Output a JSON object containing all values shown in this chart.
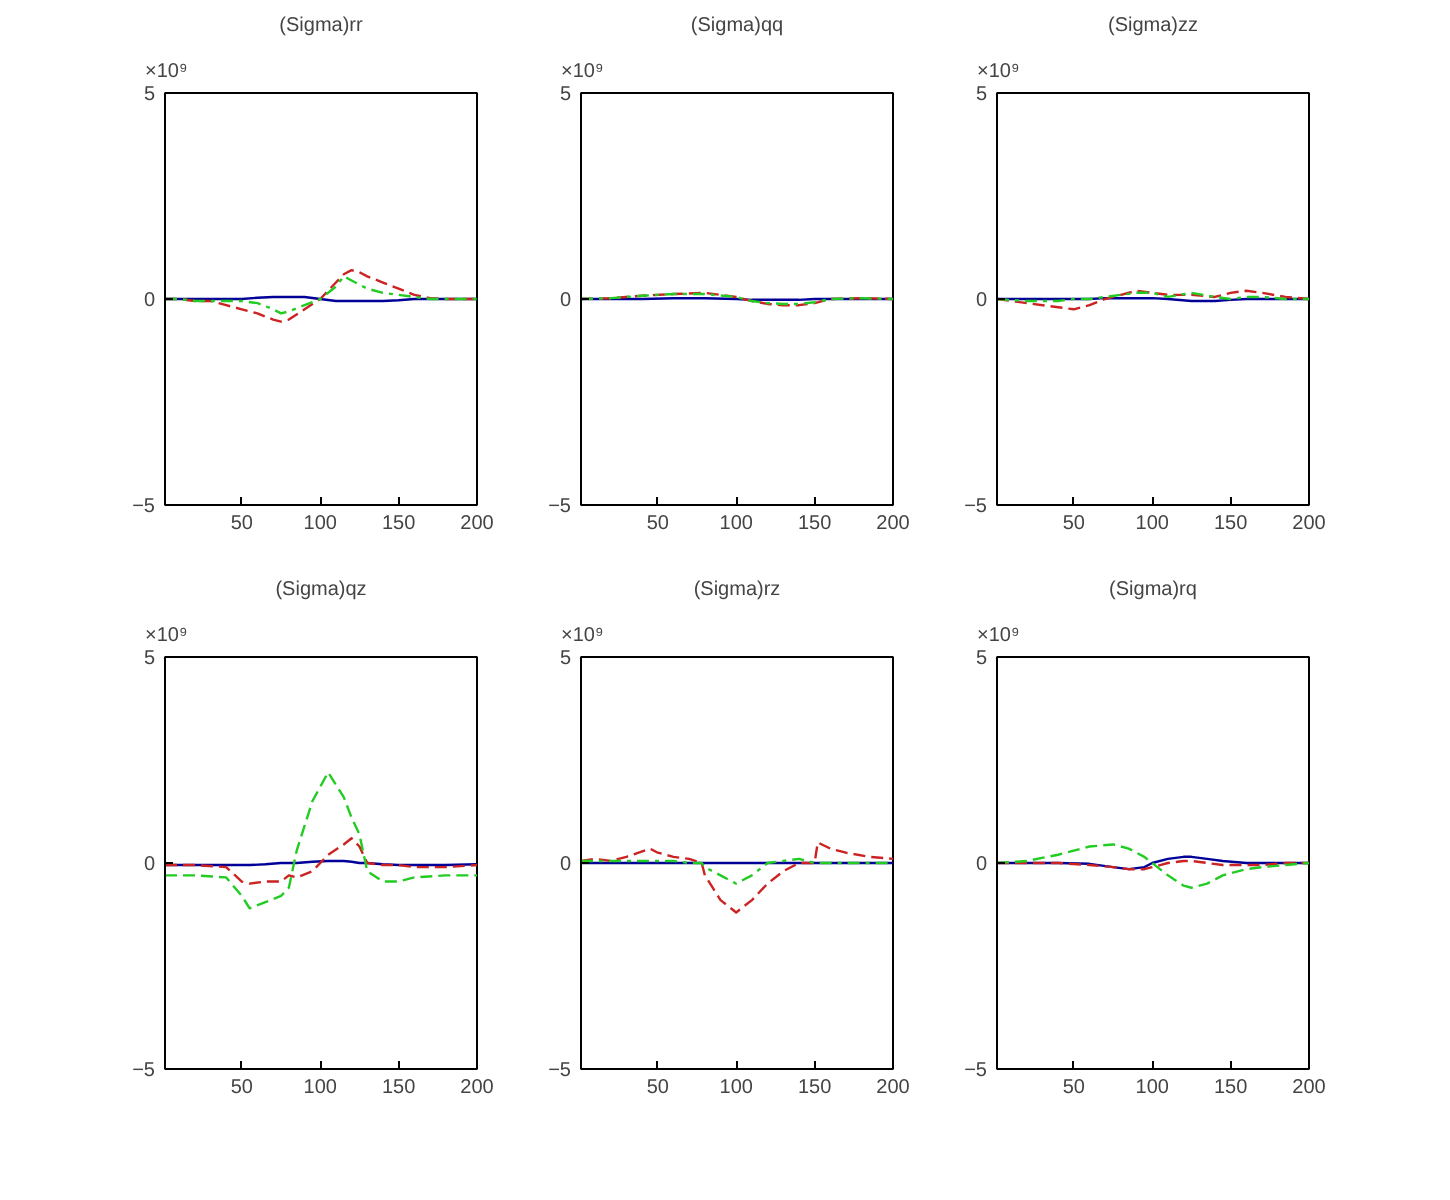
{
  "chart_data": [
    {
      "type": "line",
      "title": "(Sigma)rr",
      "ylabel": "×10⁹",
      "xlim": [
        1,
        200
      ],
      "ylim": [
        -5,
        5
      ],
      "xticks": [
        50,
        100,
        150,
        200
      ],
      "yticks": [
        -5,
        0,
        5
      ],
      "grid": false,
      "marker": "none",
      "x": [
        1,
        10,
        20,
        30,
        40,
        50,
        60,
        70,
        75,
        80,
        90,
        100,
        110,
        115,
        120,
        125,
        130,
        140,
        150,
        160,
        170,
        180,
        190,
        200
      ],
      "series": [
        {
          "color": "#000099",
          "line_style": "solid",
          "values": [
            0,
            0,
            0,
            0,
            0,
            0,
            0.03,
            0.05,
            0.05,
            0.05,
            0.05,
            0,
            -0.05,
            -0.05,
            -0.05,
            -0.05,
            -0.05,
            -0.05,
            -0.03,
            0,
            0,
            0,
            0,
            0
          ]
        },
        {
          "color": "#cc2222",
          "line_style": "dashed",
          "values": [
            0,
            0,
            -0.05,
            -0.05,
            -0.15,
            -0.25,
            -0.35,
            -0.5,
            -0.55,
            -0.5,
            -0.25,
            0,
            0.4,
            0.6,
            0.7,
            0.65,
            0.55,
            0.4,
            0.25,
            0.1,
            0.02,
            0,
            0,
            0
          ]
        },
        {
          "color": "#22cc22",
          "line_style": "dashdot",
          "values": [
            0,
            0,
            -0.05,
            -0.05,
            -0.05,
            -0.05,
            -0.1,
            -0.25,
            -0.35,
            -0.3,
            -0.15,
            0,
            0.3,
            0.55,
            0.45,
            0.35,
            0.25,
            0.15,
            0.1,
            0.05,
            0,
            0,
            0,
            0
          ]
        }
      ]
    },
    {
      "type": "line",
      "title": "(Sigma)qq",
      "ylabel": "×10⁹",
      "xlim": [
        1,
        200
      ],
      "ylim": [
        -5,
        5
      ],
      "xticks": [
        50,
        100,
        150,
        200
      ],
      "yticks": [
        -5,
        0,
        5
      ],
      "grid": false,
      "marker": "none",
      "x": [
        1,
        20,
        40,
        60,
        80,
        100,
        110,
        120,
        130,
        140,
        150,
        160,
        180,
        200
      ],
      "series": [
        {
          "color": "#000099",
          "line_style": "solid",
          "values": [
            0,
            0,
            0,
            0.02,
            0.02,
            0,
            -0.02,
            -0.02,
            -0.02,
            -0.02,
            0,
            0,
            0,
            0
          ]
        },
        {
          "color": "#cc2222",
          "line_style": "dashed",
          "values": [
            0,
            0.02,
            0.08,
            0.12,
            0.15,
            0.05,
            -0.05,
            -0.12,
            -0.15,
            -0.15,
            -0.1,
            0,
            0.02,
            0
          ]
        },
        {
          "color": "#22cc22",
          "line_style": "dashdot",
          "values": [
            0,
            0.02,
            0.08,
            0.12,
            0.12,
            0.05,
            -0.05,
            -0.1,
            -0.12,
            -0.12,
            -0.08,
            0,
            0.02,
            0
          ]
        }
      ]
    },
    {
      "type": "line",
      "title": "(Sigma)zz",
      "ylabel": "×10⁹",
      "xlim": [
        1,
        200
      ],
      "ylim": [
        -5,
        5
      ],
      "xticks": [
        50,
        100,
        150,
        200
      ],
      "yticks": [
        -5,
        0,
        5
      ],
      "grid": false,
      "marker": "none",
      "x": [
        1,
        20,
        40,
        50,
        60,
        70,
        90,
        100,
        110,
        125,
        140,
        150,
        160,
        170,
        185,
        200
      ],
      "series": [
        {
          "color": "#000099",
          "line_style": "solid",
          "values": [
            0,
            0,
            0,
            0,
            0,
            0.02,
            0.02,
            0.02,
            0,
            -0.05,
            -0.05,
            -0.02,
            0,
            0,
            0,
            0
          ]
        },
        {
          "color": "#cc2222",
          "line_style": "dashed",
          "values": [
            0,
            -0.1,
            -0.2,
            -0.25,
            -0.15,
            0,
            0.2,
            0.15,
            0.1,
            0.1,
            0.05,
            0.15,
            0.2,
            0.15,
            0.05,
            0
          ]
        },
        {
          "color": "#22cc22",
          "line_style": "dashdot",
          "values": [
            0,
            -0.05,
            -0.05,
            0,
            0,
            0.05,
            0.15,
            0.15,
            0.05,
            0.15,
            0.05,
            0,
            0.05,
            0.05,
            0,
            0
          ]
        }
      ]
    },
    {
      "type": "line",
      "title": "(Sigma)qz",
      "ylabel": "×10⁹",
      "xlim": [
        1,
        200
      ],
      "ylim": [
        -5,
        5
      ],
      "xticks": [
        50,
        100,
        150,
        200
      ],
      "yticks": [
        -5,
        0,
        5
      ],
      "grid": false,
      "marker": "none",
      "x": [
        1,
        20,
        40,
        50,
        55,
        65,
        75,
        80,
        85,
        95,
        105,
        115,
        120,
        125,
        130,
        140,
        150,
        160,
        180,
        200
      ],
      "series": [
        {
          "color": "#000099",
          "line_style": "solid",
          "values": [
            -0.05,
            -0.05,
            -0.05,
            -0.05,
            -0.05,
            -0.03,
            0,
            0,
            0,
            0.03,
            0.05,
            0.05,
            0.03,
            0,
            0,
            -0.03,
            -0.05,
            -0.05,
            -0.05,
            -0.03
          ]
        },
        {
          "color": "#cc2222",
          "line_style": "dashed",
          "values": [
            -0.05,
            -0.05,
            -0.1,
            -0.45,
            -0.5,
            -0.45,
            -0.45,
            -0.3,
            -0.35,
            -0.2,
            0.2,
            0.45,
            0.6,
            0.4,
            0,
            -0.05,
            -0.05,
            -0.1,
            -0.1,
            -0.05
          ]
        },
        {
          "color": "#22cc22",
          "line_style": "dashed",
          "values": [
            -0.3,
            -0.3,
            -0.35,
            -0.8,
            -1.1,
            -0.95,
            -0.8,
            -0.6,
            0.3,
            1.5,
            2.2,
            1.6,
            1.1,
            0.7,
            -0.2,
            -0.45,
            -0.45,
            -0.35,
            -0.3,
            -0.3
          ]
        }
      ]
    },
    {
      "type": "line",
      "title": "(Sigma)rz",
      "ylabel": "×10⁹",
      "xlim": [
        1,
        200
      ],
      "ylim": [
        -5,
        5
      ],
      "xticks": [
        50,
        100,
        150,
        200
      ],
      "yticks": [
        -5,
        0,
        5
      ],
      "grid": false,
      "marker": "none",
      "x": [
        1,
        10,
        20,
        30,
        45,
        50,
        60,
        70,
        78,
        80,
        85,
        90,
        100,
        110,
        120,
        130,
        140,
        150,
        152,
        160,
        170,
        185,
        200
      ],
      "series": [
        {
          "color": "#000099",
          "line_style": "solid",
          "values": [
            0,
            0,
            0,
            0,
            0,
            0,
            0,
            0,
            0,
            0,
            0,
            0,
            0,
            0,
            0,
            0,
            0,
            0,
            0,
            0,
            0,
            0,
            0
          ]
        },
        {
          "color": "#cc2222",
          "line_style": "dashed",
          "values": [
            0.05,
            0.1,
            0.05,
            0.15,
            0.35,
            0.25,
            0.15,
            0.1,
            0,
            -0.3,
            -0.6,
            -0.9,
            -1.2,
            -0.9,
            -0.5,
            -0.2,
            0,
            0,
            0.5,
            0.35,
            0.25,
            0.15,
            0.1
          ]
        },
        {
          "color": "#22cc22",
          "line_style": "dashdot",
          "values": [
            0.05,
            0.05,
            0.05,
            0.05,
            0.05,
            0.05,
            0.05,
            0,
            0,
            -0.1,
            -0.2,
            -0.3,
            -0.5,
            -0.3,
            0,
            0.05,
            0.1,
            0,
            0,
            0,
            0,
            0,
            0
          ]
        }
      ]
    },
    {
      "type": "line",
      "title": "(Sigma)rq",
      "ylabel": "×10⁹",
      "xlim": [
        1,
        200
      ],
      "ylim": [
        -5,
        5
      ],
      "xticks": [
        50,
        100,
        150,
        200
      ],
      "yticks": [
        -5,
        0,
        5
      ],
      "grid": false,
      "marker": "none",
      "x": [
        1,
        20,
        40,
        60,
        75,
        85,
        95,
        100,
        110,
        120,
        125,
        135,
        145,
        160,
        170,
        185,
        200
      ],
      "series": [
        {
          "color": "#000099",
          "line_style": "solid",
          "values": [
            0,
            0,
            0,
            -0.02,
            -0.1,
            -0.15,
            -0.1,
            0,
            0.1,
            0.15,
            0.15,
            0.1,
            0.05,
            0,
            0,
            0,
            0
          ]
        },
        {
          "color": "#cc2222",
          "line_style": "dashed",
          "values": [
            0,
            0,
            0,
            -0.05,
            -0.1,
            -0.15,
            -0.15,
            -0.1,
            0,
            0.05,
            0.05,
            0,
            -0.05,
            -0.05,
            -0.05,
            0,
            0
          ]
        },
        {
          "color": "#22cc22",
          "line_style": "dashed",
          "values": [
            0,
            0.05,
            0.2,
            0.4,
            0.45,
            0.35,
            0.15,
            0,
            -0.3,
            -0.55,
            -0.6,
            -0.5,
            -0.3,
            -0.15,
            -0.1,
            -0.05,
            0
          ]
        }
      ]
    }
  ]
}
